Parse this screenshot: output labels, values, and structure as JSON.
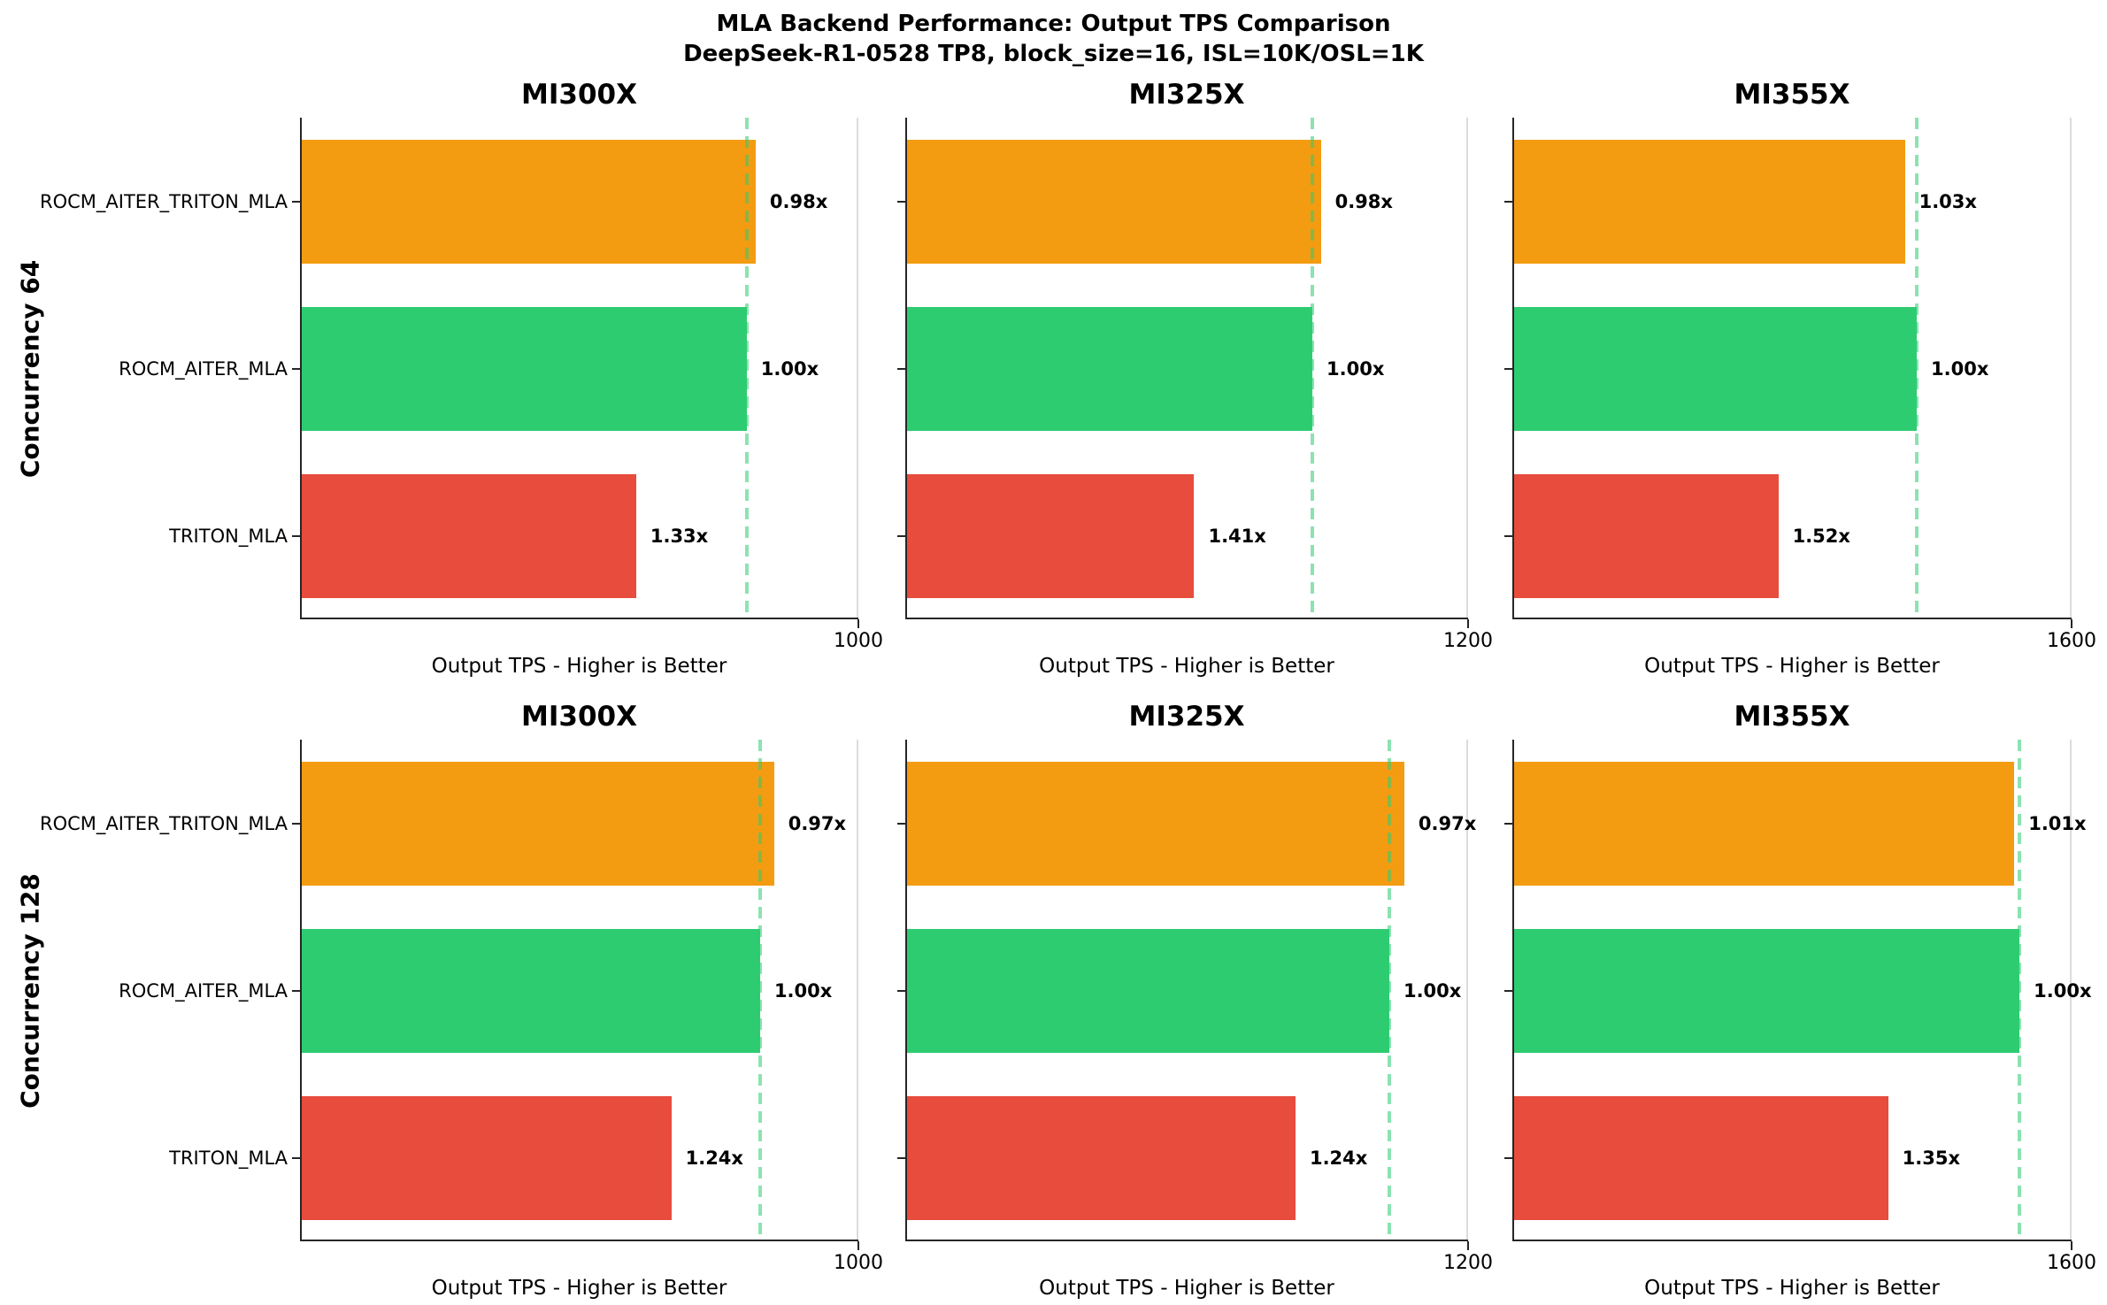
{
  "figure": {
    "background": "#ffffff"
  },
  "suptitle": {
    "line1": "MLA Backend Performance: Output TPS Comparison",
    "line2": "DeepSeek-R1-0528 TP8, block_size=16, ISL=10K/OSL=1K"
  },
  "colors": {
    "ROCM_AITER_TRITON_MLA": "#F39C12",
    "ROCM_AITER_MLA": "#2ECC71",
    "TRITON_MLA": "#E74C3C",
    "reference_line": "rgba(46,204,113,0.55)",
    "spine": "#262626",
    "gridline": "#DCDCDC",
    "text": "#000000"
  },
  "chart_data": {
    "type": "bar",
    "orientation": "horizontal",
    "grid": "single vertical gridline at xmax",
    "xlabel": "Output TPS - Higher is Better",
    "categories": [
      "ROCM_AITER_TRITON_MLA",
      "ROCM_AITER_MLA",
      "TRITON_MLA"
    ],
    "reference_backend": "ROCM_AITER_MLA",
    "rows": [
      {
        "row_label": "Concurrency 64",
        "subplots": [
          {
            "title": "MI300X",
            "xmax": 1000,
            "xtick_label": "1000",
            "reference_value": 800,
            "bars": [
              {
                "backend": "ROCM_AITER_TRITON_MLA",
                "value": 816,
                "ratio_label": "0.98x"
              },
              {
                "backend": "ROCM_AITER_MLA",
                "value": 800,
                "ratio_label": "1.00x"
              },
              {
                "backend": "TRITON_MLA",
                "value": 602,
                "ratio_label": "1.33x"
              }
            ]
          },
          {
            "title": "MI325X",
            "xmax": 1200,
            "xtick_label": "1200",
            "reference_value": 868,
            "bars": [
              {
                "backend": "ROCM_AITER_TRITON_MLA",
                "value": 886,
                "ratio_label": "0.98x"
              },
              {
                "backend": "ROCM_AITER_MLA",
                "value": 868,
                "ratio_label": "1.00x"
              },
              {
                "backend": "TRITON_MLA",
                "value": 616,
                "ratio_label": "1.41x"
              }
            ]
          },
          {
            "title": "MI355X",
            "xmax": 1600,
            "xtick_label": "1600",
            "reference_value": 1157,
            "bars": [
              {
                "backend": "ROCM_AITER_TRITON_MLA",
                "value": 1123,
                "ratio_label": "1.03x"
              },
              {
                "backend": "ROCM_AITER_MLA",
                "value": 1157,
                "ratio_label": "1.00x"
              },
              {
                "backend": "TRITON_MLA",
                "value": 761,
                "ratio_label": "1.52x"
              }
            ]
          }
        ]
      },
      {
        "row_label": "Concurrency 128",
        "subplots": [
          {
            "title": "MI300X",
            "xmax": 1000,
            "xtick_label": "1000",
            "reference_value": 824,
            "bars": [
              {
                "backend": "ROCM_AITER_TRITON_MLA",
                "value": 849,
                "ratio_label": "0.97x"
              },
              {
                "backend": "ROCM_AITER_MLA",
                "value": 824,
                "ratio_label": "1.00x"
              },
              {
                "backend": "TRITON_MLA",
                "value": 665,
                "ratio_label": "1.24x"
              }
            ]
          },
          {
            "title": "MI325X",
            "xmax": 1200,
            "xtick_label": "1200",
            "reference_value": 1032,
            "bars": [
              {
                "backend": "ROCM_AITER_TRITON_MLA",
                "value": 1064,
                "ratio_label": "0.97x"
              },
              {
                "backend": "ROCM_AITER_MLA",
                "value": 1032,
                "ratio_label": "1.00x"
              },
              {
                "backend": "TRITON_MLA",
                "value": 832,
                "ratio_label": "1.24x"
              }
            ]
          },
          {
            "title": "MI355X",
            "xmax": 1600,
            "xtick_label": "1600",
            "reference_value": 1451,
            "bars": [
              {
                "backend": "ROCM_AITER_TRITON_MLA",
                "value": 1436,
                "ratio_label": "1.01x"
              },
              {
                "backend": "ROCM_AITER_MLA",
                "value": 1451,
                "ratio_label": "1.00x"
              },
              {
                "backend": "TRITON_MLA",
                "value": 1075,
                "ratio_label": "1.35x"
              }
            ]
          }
        ]
      }
    ]
  }
}
